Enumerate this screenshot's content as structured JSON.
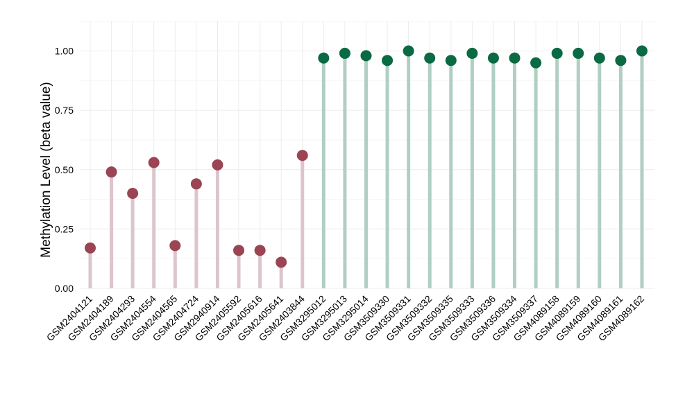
{
  "chart_data": {
    "type": "lollipop",
    "title": "",
    "xlabel": "",
    "ylabel": "Methylation Level (beta value)",
    "ylim": [
      0,
      1.0
    ],
    "yticks": [
      "0.00",
      "0.25",
      "0.50",
      "0.75",
      "1.00"
    ],
    "grid": true,
    "legend": "none",
    "categories": [
      "GSM2404121",
      "GSM2404189",
      "GSM2404293",
      "GSM2404554",
      "GSM2404565",
      "GSM2404724",
      "GSM2940914",
      "GSM2405592",
      "GSM2405616",
      "GSM2405641",
      "GSM2403844",
      "GSM3295012",
      "GSM3295013",
      "GSM3295014",
      "GSM3509330",
      "GSM3509331",
      "GSM3509332",
      "GSM3509335",
      "GSM3509333",
      "GSM3509336",
      "GSM3509334",
      "GSM3509337",
      "GSM4089158",
      "GSM4089159",
      "GSM4089160",
      "GSM4089161",
      "GSM4089162"
    ],
    "values": [
      0.17,
      0.49,
      0.4,
      0.53,
      0.18,
      0.44,
      0.52,
      0.16,
      0.16,
      0.11,
      0.56,
      0.97,
      0.99,
      0.98,
      0.96,
      1.0,
      0.97,
      0.96,
      0.99,
      0.97,
      0.97,
      0.95,
      0.99,
      0.99,
      0.97,
      0.96,
      1.0
    ],
    "groups": [
      "A",
      "A",
      "A",
      "A",
      "A",
      "A",
      "A",
      "A",
      "A",
      "A",
      "A",
      "B",
      "B",
      "B",
      "B",
      "B",
      "B",
      "B",
      "B",
      "B",
      "B",
      "B",
      "B",
      "B",
      "B",
      "B",
      "B"
    ],
    "colors": {
      "A": {
        "point": "#9b4453",
        "stem": "#dcc5cb"
      },
      "B": {
        "point": "#0a6a43",
        "stem": "#b0cfc2"
      }
    }
  }
}
